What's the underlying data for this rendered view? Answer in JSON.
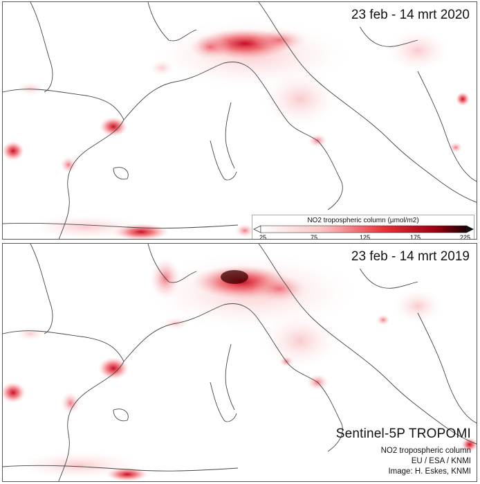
{
  "panels": [
    {
      "date_label": "23 feb - 14 mrt 2020"
    },
    {
      "date_label": "23 feb - 14 mrt 2019"
    }
  ],
  "legend": {
    "title": "NO2 tropospheric column (µmol/m2)",
    "ticks": [
      "25",
      "75",
      "125",
      "175",
      "225"
    ],
    "color_low": "#ffffff",
    "color_mid": "#e8303a",
    "color_high": "#1a0000"
  },
  "credits": {
    "title": "Sentinel-5P TROPOMI",
    "line1": "NO2 tropospheric column",
    "line2": "EU / ESA / KNMI",
    "line3": "Image: H. Eskes, KNMI"
  }
}
